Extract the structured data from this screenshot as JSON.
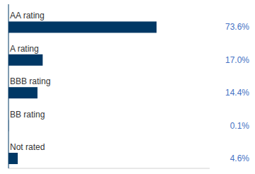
{
  "chart_data": {
    "type": "bar",
    "orientation": "horizontal",
    "categories": [
      "AA rating",
      "A rating",
      "BBB rating",
      "BB rating",
      "Not rated"
    ],
    "values": [
      73.6,
      17.0,
      14.4,
      0.1,
      4.6
    ],
    "value_labels": [
      "73.6%",
      "17.0%",
      "14.4%",
      "0.1%",
      "4.6%"
    ],
    "data_labels": true,
    "color": "#003865",
    "xlim": [
      0,
      100
    ],
    "tick_labels": false,
    "grid": false
  }
}
